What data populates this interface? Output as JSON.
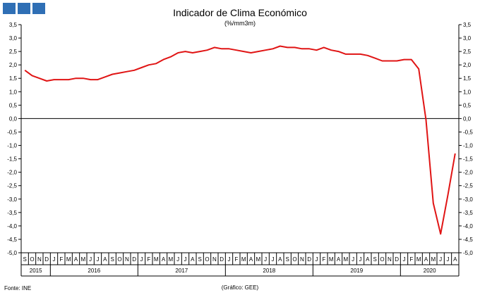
{
  "title": "Indicador de Clima Económico",
  "subtitle": "(%/mm3m)",
  "source": "Fonte: INE",
  "credit": "(Gráfico: GEE)",
  "colors": {
    "line": "#e01414",
    "logo": "#2f6fb5"
  },
  "chart_data": {
    "type": "line",
    "title": "Indicador de Clima Económico",
    "subtitle": "(%/mm3m)",
    "ylim": [
      -5.0,
      3.5
    ],
    "yticks": [
      "3,5",
      "3,0",
      "2,5",
      "2,0",
      "1,5",
      "1,0",
      "0,5",
      "0,0",
      "-0,5",
      "-1,0",
      "-1,5",
      "-2,0",
      "-2,5",
      "-3,0",
      "-3,5",
      "-4,0",
      "-4,5",
      "-5,0"
    ],
    "month_labels": [
      "S",
      "O",
      "N",
      "D",
      "J",
      "F",
      "M",
      "A",
      "M",
      "J",
      "J",
      "A",
      "S",
      "O",
      "N",
      "D",
      "J",
      "F",
      "M",
      "A",
      "M",
      "J",
      "J",
      "A",
      "S",
      "O",
      "N",
      "D",
      "J",
      "F",
      "M",
      "A",
      "M",
      "J",
      "J",
      "A",
      "S",
      "O",
      "N",
      "D",
      "J",
      "F",
      "M",
      "A",
      "M",
      "J",
      "J",
      "A",
      "S",
      "O",
      "N",
      "D",
      "J",
      "F",
      "M",
      "A",
      "M",
      "J",
      "J",
      "A"
    ],
    "year_labels": [
      "2015",
      "2016",
      "2017",
      "2018",
      "2019",
      "2020"
    ],
    "x_start": "2015-09",
    "series": [
      {
        "values": [
          1.8,
          1.6,
          1.5,
          1.4,
          1.45,
          1.45,
          1.45,
          1.5,
          1.5,
          1.45,
          1.45,
          1.55,
          1.65,
          1.7,
          1.75,
          1.8,
          1.9,
          2.0,
          2.05,
          2.2,
          2.3,
          2.45,
          2.5,
          2.45,
          2.5,
          2.55,
          2.65,
          2.6,
          2.6,
          2.55,
          2.5,
          2.45,
          2.5,
          2.55,
          2.6,
          2.7,
          2.65,
          2.65,
          2.6,
          2.6,
          2.55,
          2.65,
          2.55,
          2.5,
          2.4,
          2.4,
          2.4,
          2.35,
          2.25,
          2.15,
          2.15,
          2.15,
          2.2,
          2.2,
          1.85,
          -0.05,
          -3.15,
          -4.3,
          -2.85,
          -1.3
        ]
      }
    ],
    "grid": false,
    "legend": "none"
  }
}
